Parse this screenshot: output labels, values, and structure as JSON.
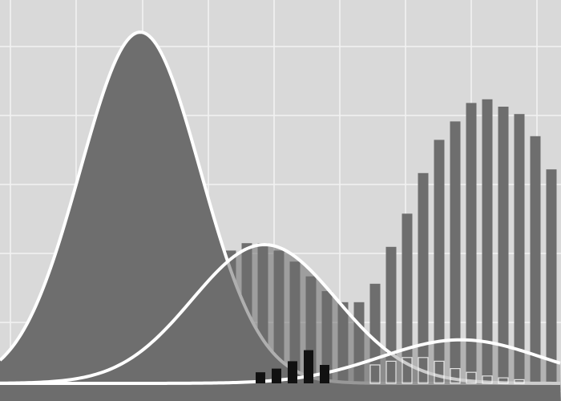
{
  "chart_data": {
    "type": "area",
    "title": "",
    "xlabel": "",
    "ylabel": "",
    "grid": true,
    "legend": "none",
    "xlim": [
      0,
      700
    ],
    "ylim": [
      0,
      1
    ],
    "colors": {
      "background": "#d9d9d9",
      "grid": "#f2f2f2",
      "curve_fill": "#6e6e6e",
      "curve_stroke": "#ffffff",
      "bar": "#6e6e6e",
      "bar_dark": "#111111",
      "bar_outline": "#ffffff"
    },
    "curves": [
      {
        "mean": 175,
        "sd": 75,
        "peak": 0.952
      },
      {
        "mean": 330,
        "sd": 90,
        "peak": 0.376
      },
      {
        "mean": 575,
        "sd": 100,
        "peak": 0.118
      }
    ],
    "bars": {
      "x": [
        148,
        168,
        188,
        208,
        228,
        248,
        268,
        288,
        308,
        328,
        348,
        368,
        388,
        408,
        428,
        448,
        468,
        488,
        508,
        528,
        548,
        568,
        588,
        608,
        628,
        648,
        668,
        688
      ],
      "values": [
        0.05,
        0.07,
        0.11,
        0.16,
        0.21,
        0.27,
        0.32,
        0.36,
        0.38,
        0.38,
        0.36,
        0.33,
        0.29,
        0.25,
        0.22,
        0.22,
        0.27,
        0.37,
        0.46,
        0.57,
        0.66,
        0.71,
        0.76,
        0.77,
        0.75,
        0.73,
        0.67,
        0.58
      ]
    },
    "dark_bars": {
      "x": [
        325,
        345,
        365,
        385,
        405
      ],
      "values": [
        0.03,
        0.04,
        0.06,
        0.09,
        0.05
      ]
    },
    "outline_bars": {
      "x": [
        468,
        488,
        508,
        528,
        548,
        568,
        588,
        608,
        628,
        648
      ],
      "values": [
        0.05,
        0.06,
        0.07,
        0.07,
        0.06,
        0.04,
        0.03,
        0.02,
        0.015,
        0.01
      ]
    }
  }
}
